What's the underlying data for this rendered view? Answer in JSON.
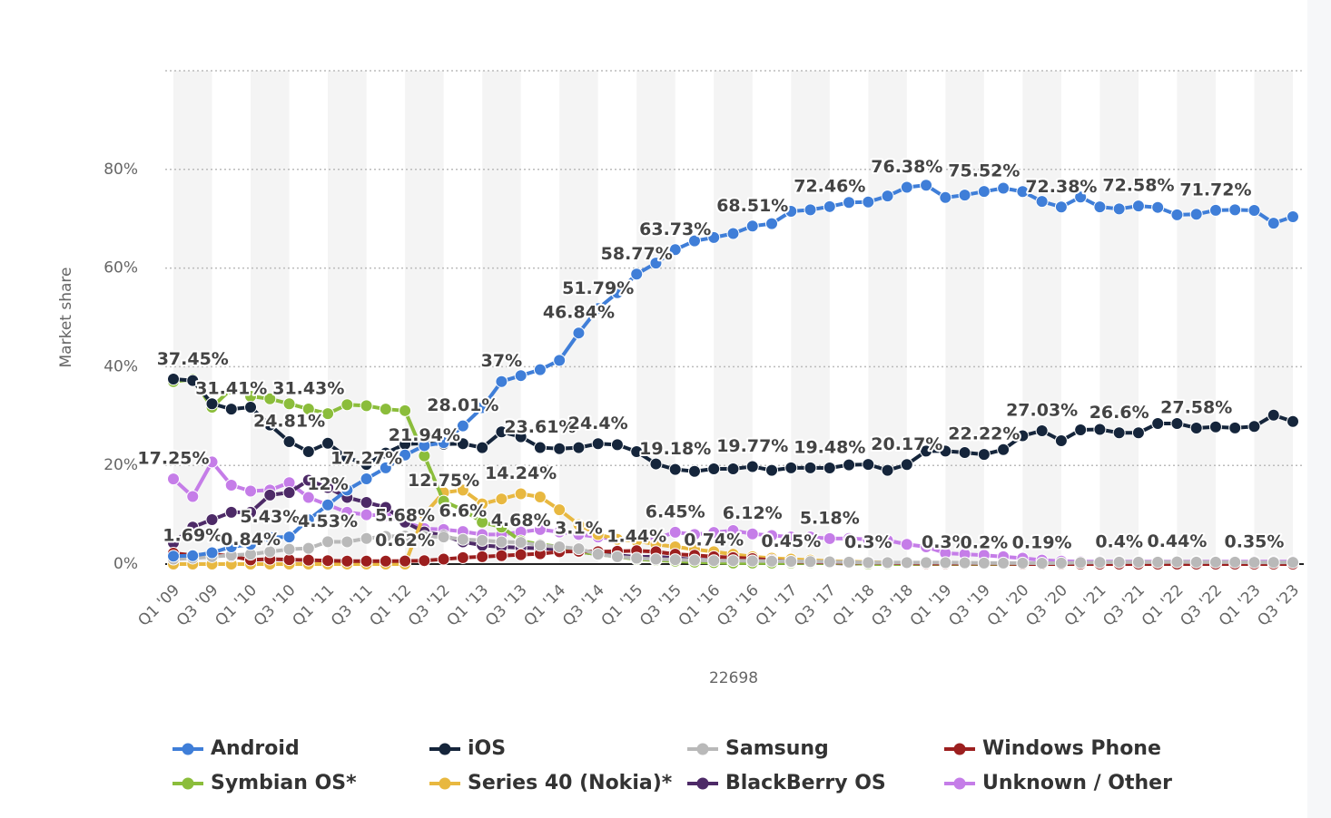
{
  "chart_data": {
    "type": "line",
    "y_label": "Market share",
    "x_label": "22698",
    "categories": [
      "Q1 '09",
      null,
      "Q3 '09",
      null,
      "Q1 '10",
      null,
      "Q3 '10",
      null,
      "Q1 '11",
      null,
      "Q3 '11",
      null,
      "Q1 '12",
      null,
      "Q3 '12",
      null,
      "Q1 '13",
      null,
      "Q3 '13",
      null,
      "Q1 '14",
      null,
      "Q3 '14",
      null,
      "Q1 '15",
      null,
      "Q3 '15",
      null,
      "Q1 '16",
      null,
      "Q3 '16",
      null,
      "Q1 '17",
      null,
      "Q3 '17",
      null,
      "Q1 '18",
      null,
      "Q3 '18",
      null,
      "Q1 '19",
      null,
      "Q3 '19",
      null,
      "Q1 '20",
      null,
      "Q3 '20",
      null,
      "Q1 '21",
      null,
      "Q3 '21",
      null,
      "Q1 '22",
      null,
      "Q3 '22",
      null,
      "Q1 '23",
      null,
      "Q3 '23"
    ],
    "ylim": [
      0,
      100
    ],
    "yticks": [
      {
        "value": 0,
        "label": "0%"
      },
      {
        "value": 20,
        "label": "20%"
      },
      {
        "value": 40,
        "label": "40%"
      },
      {
        "value": 60,
        "label": "60%"
      },
      {
        "value": 80,
        "label": "80%"
      }
    ],
    "grid": true,
    "legend": "bottom",
    "series": [
      {
        "name": "Android",
        "color": "#3f7ed8",
        "values": [
          1.6,
          1.69,
          2.3,
          3.5,
          4.0,
          5.43,
          5.5,
          9.0,
          12.0,
          15.0,
          17.27,
          19.5,
          22.1,
          24.0,
          24.6,
          28.01,
          31.7,
          37,
          38.2,
          39.4,
          41.3,
          46.84,
          51.79,
          55.0,
          58.77,
          61.0,
          63.73,
          65.5,
          66.2,
          67.0,
          68.51,
          69.0,
          71.5,
          71.8,
          72.46,
          73.3,
          73.4,
          74.6,
          76.38,
          76.8,
          74.3,
          74.8,
          75.52,
          76.2,
          75.5,
          73.5,
          72.38,
          74.4,
          72.4,
          72.0,
          72.58,
          72.3,
          70.8,
          70.9,
          71.72,
          71.8,
          71.7,
          69.1,
          70.4
        ],
        "value_labels": [
          null,
          "1.69%",
          null,
          null,
          null,
          "5.43%",
          null,
          null,
          null,
          null,
          "17.27%",
          null,
          null,
          null,
          null,
          "28.01%",
          null,
          "37%",
          null,
          null,
          null,
          "46.84%",
          "51.79%",
          null,
          "58.77%",
          null,
          "63.73%",
          null,
          null,
          null,
          "68.51%",
          null,
          null,
          null,
          "72.46%",
          null,
          null,
          null,
          "76.38%",
          null,
          null,
          null,
          "75.52%",
          null,
          null,
          null,
          "72.38%",
          null,
          null,
          null,
          "72.58%",
          null,
          null,
          null,
          "71.72%",
          null,
          null,
          null,
          null
        ]
      },
      {
        "name": "iOS",
        "color": "#15253b",
        "values": [
          37.5,
          37.2,
          32.5,
          31.41,
          31.8,
          28.2,
          24.81,
          22.8,
          24.5,
          21.6,
          20.2,
          22.5,
          24.3,
          24.5,
          24.3,
          24.4,
          23.6,
          26.8,
          25.8,
          23.61,
          23.4,
          23.6,
          24.4,
          24.2,
          22.8,
          20.3,
          19.18,
          18.8,
          19.3,
          19.3,
          19.77,
          19.0,
          19.5,
          19.5,
          19.48,
          20.1,
          20.2,
          19.0,
          20.17,
          22.9,
          22.9,
          22.6,
          22.22,
          23.2,
          26.0,
          27.03,
          25.0,
          27.2,
          27.3,
          26.6,
          26.6,
          28.5,
          28.5,
          27.58,
          27.8,
          27.6,
          27.9,
          30.2,
          28.9
        ],
        "value_labels": [
          null,
          null,
          null,
          "31.41%",
          null,
          null,
          "24.81%",
          null,
          null,
          null,
          null,
          null,
          null,
          null,
          null,
          null,
          null,
          null,
          null,
          "23.61%",
          null,
          null,
          "24.4%",
          null,
          null,
          null,
          "19.18%",
          null,
          null,
          null,
          "19.77%",
          null,
          null,
          null,
          "19.48%",
          null,
          null,
          null,
          "20.17%",
          null,
          null,
          null,
          "22.22%",
          null,
          null,
          "27.03%",
          null,
          null,
          null,
          "26.6%",
          null,
          null,
          null,
          "27.58%",
          null,
          null,
          null,
          null,
          null
        ]
      },
      {
        "name": "Samsung",
        "color": "#b9b9b9",
        "values": [
          1.0,
          1.2,
          1.5,
          1.8,
          2.0,
          2.5,
          3.0,
          3.2,
          4.53,
          4.5,
          5.2,
          5.6,
          5.68,
          5.6,
          5.5,
          5.0,
          4.8,
          4.5,
          4.4,
          3.8,
          3.5,
          3.1,
          2.0,
          1.5,
          1.2,
          1.0,
          0.9,
          0.8,
          0.7,
          0.7,
          0.65,
          0.6,
          0.55,
          0.5,
          0.45,
          0.4,
          0.3,
          0.3,
          0.3,
          0.3,
          0.3,
          0.25,
          0.2,
          0.2,
          0.2,
          0.19,
          0.2,
          0.3,
          0.35,
          0.4,
          0.4,
          0.4,
          0.44,
          0.4,
          0.4,
          0.4,
          0.35,
          0.35,
          0.35
        ],
        "value_labels": [
          null,
          null,
          null,
          null,
          null,
          null,
          null,
          null,
          "4.53%",
          null,
          null,
          null,
          "5.68%",
          null,
          null,
          null,
          null,
          null,
          null,
          null,
          null,
          "3.1%",
          null,
          null,
          null,
          null,
          null,
          null,
          null,
          null,
          null,
          null,
          null,
          null,
          null,
          null,
          "0.3%",
          null,
          null,
          null,
          "0.3%",
          null,
          "0.2%",
          null,
          null,
          "0.19%",
          null,
          null,
          null,
          "0.4%",
          null,
          null,
          "0.44%",
          null,
          null,
          null,
          "0.35%",
          null,
          null
        ]
      },
      {
        "name": "Windows Phone",
        "color": "#9c1f1f",
        "values": [
          2.2,
          1.8,
          2.0,
          1.6,
          0.84,
          1.0,
          0.9,
          0.8,
          0.7,
          0.6,
          0.6,
          0.6,
          0.62,
          0.7,
          1.0,
          1.3,
          1.5,
          1.7,
          1.9,
          2.1,
          2.5,
          2.6,
          2.5,
          2.6,
          2.7,
          2.5,
          2.0,
          1.8,
          1.5,
          1.3,
          1.1,
          0.8,
          0.45,
          0.4,
          0.35,
          0.3,
          0.25,
          0.2,
          0.15,
          0.1,
          0.1,
          0.1,
          0.1,
          0.1,
          0,
          0,
          0,
          0,
          0,
          0,
          0,
          0,
          0,
          0,
          0,
          0,
          0,
          0,
          0
        ],
        "value_labels": [
          null,
          null,
          null,
          null,
          "0.84%",
          null,
          null,
          null,
          null,
          null,
          null,
          null,
          "0.62%",
          null,
          null,
          null,
          null,
          null,
          null,
          null,
          null,
          null,
          null,
          null,
          null,
          null,
          null,
          null,
          null,
          null,
          null,
          null,
          "0.45%",
          null,
          null,
          null,
          null,
          null,
          null,
          null,
          null,
          null,
          null,
          null,
          null,
          null,
          null,
          null,
          null,
          null,
          null,
          null,
          null,
          null,
          null,
          null,
          null,
          null,
          null
        ]
      },
      {
        "name": "Symbian OS*",
        "color": "#8bbd3b",
        "values": [
          37.0,
          37.45,
          31.8,
          35.5,
          34.0,
          33.5,
          32.5,
          31.43,
          30.5,
          32.3,
          32.1,
          31.4,
          31.1,
          21.94,
          12.75,
          11.0,
          8.5,
          7.5,
          4.68,
          4.0,
          3.5,
          2.5,
          2.0,
          1.5,
          1.0,
          0.8,
          0.6,
          0.4,
          0.3,
          0.2,
          0.2,
          0.2,
          0.2,
          0.2,
          0.2,
          0.2,
          0,
          0,
          0,
          0,
          0,
          0,
          0,
          0,
          0,
          0,
          0,
          0,
          0,
          0,
          0,
          0,
          0,
          0,
          0,
          0,
          0,
          0,
          0
        ],
        "value_labels": [
          null,
          "37.45%",
          null,
          null,
          null,
          null,
          null,
          "31.43%",
          null,
          null,
          null,
          null,
          null,
          "21.94%",
          "12.75%",
          null,
          null,
          null,
          "4.68%",
          null,
          null,
          null,
          null,
          null,
          null,
          null,
          null,
          null,
          null,
          null,
          null,
          null,
          null,
          null,
          null,
          null,
          null,
          null,
          null,
          null,
          null,
          null,
          null,
          null,
          null,
          null,
          null,
          null,
          null,
          null,
          null,
          null,
          null,
          null,
          null,
          null,
          null,
          null,
          null
        ]
      },
      {
        "name": "Series 40 (Nokia)*",
        "color": "#e8b840",
        "values": [
          0,
          0,
          0,
          0,
          0,
          0,
          0,
          0,
          0,
          0,
          0,
          0,
          0,
          10.1,
          14.5,
          15.0,
          12.2,
          13.2,
          14.24,
          13.6,
          11.0,
          8.0,
          6.0,
          5.0,
          4.7,
          4.0,
          3.5,
          3.0,
          2.5,
          2.0,
          1.5,
          1.2,
          1.0,
          0.8,
          0.6,
          0.5,
          0.4,
          0.3,
          0.2,
          0.1,
          0.1,
          0.1,
          0,
          0,
          0,
          0,
          0,
          0,
          0,
          0,
          0,
          0,
          0,
          0,
          0,
          0,
          0,
          0,
          0
        ],
        "value_labels": [
          null,
          null,
          null,
          null,
          null,
          null,
          null,
          null,
          null,
          null,
          null,
          null,
          null,
          null,
          null,
          null,
          null,
          null,
          "14.24%",
          null,
          null,
          null,
          null,
          null,
          null,
          null,
          null,
          null,
          null,
          null,
          null,
          null,
          null,
          null,
          null,
          null,
          null,
          null,
          null,
          null,
          null,
          null,
          null,
          null,
          null,
          null,
          null,
          null,
          null,
          null,
          null,
          null,
          null,
          null,
          null,
          null,
          null,
          null,
          null
        ]
      },
      {
        "name": "BlackBerry OS",
        "color": "#4d2a67",
        "values": [
          4.3,
          7.5,
          9.0,
          10.5,
          10.5,
          14.0,
          14.5,
          17.0,
          15.5,
          13.5,
          12.5,
          11.5,
          8.5,
          6.5,
          5.8,
          4.5,
          3.8,
          3.5,
          3.3,
          3.2,
          3.0,
          2.5,
          2.0,
          1.8,
          1.44,
          1.5,
          1.2,
          0.9,
          0.74,
          0.6,
          0.5,
          0.4,
          0.3,
          0.2,
          0.2,
          0.1,
          0.1,
          0,
          0,
          0,
          0,
          0,
          0,
          0,
          0,
          0,
          0,
          0,
          0,
          0,
          0,
          0,
          0,
          0,
          0,
          0,
          0,
          0,
          0
        ],
        "value_labels": [
          null,
          null,
          null,
          null,
          null,
          null,
          null,
          null,
          null,
          null,
          null,
          null,
          null,
          null,
          null,
          null,
          null,
          null,
          null,
          null,
          null,
          null,
          null,
          null,
          "1.44%",
          null,
          null,
          null,
          "0.74%",
          null,
          null,
          null,
          null,
          null,
          null,
          null,
          null,
          null,
          null,
          null,
          null,
          null,
          null,
          null,
          null,
          null,
          null,
          null,
          null,
          null,
          null,
          null,
          null,
          null,
          null,
          null,
          null,
          null,
          null
        ]
      },
      {
        "name": "Unknown / Other",
        "color": "#c57de8",
        "values": [
          17.25,
          13.7,
          20.7,
          16.0,
          14.8,
          15.0,
          16.5,
          13.5,
          12,
          10.5,
          10.0,
          9.8,
          8.5,
          7.2,
          7.0,
          6.6,
          6.0,
          6.0,
          6.5,
          7.0,
          6.5,
          6.0,
          5.5,
          5.0,
          4.8,
          5.2,
          6.45,
          6.0,
          6.4,
          6.8,
          6.12,
          5.8,
          5.5,
          5.5,
          5.18,
          5.2,
          5.0,
          4.8,
          4.0,
          3.5,
          2.2,
          2.0,
          1.8,
          1.5,
          1.2,
          0.8,
          0.6,
          0.5,
          0.5,
          0.5,
          0.5,
          0.5,
          0.5,
          0.5,
          0.5,
          0.5,
          0.5,
          0.5,
          0.5
        ],
        "value_labels": [
          "17.25%",
          null,
          null,
          null,
          null,
          null,
          null,
          null,
          "12%",
          null,
          null,
          null,
          null,
          null,
          null,
          "6.6%",
          null,
          null,
          null,
          null,
          null,
          null,
          null,
          null,
          null,
          null,
          "6.45%",
          null,
          null,
          null,
          "6.12%",
          null,
          null,
          null,
          "5.18%",
          null,
          null,
          null,
          null,
          null,
          null,
          null,
          null,
          null,
          null,
          null,
          null,
          null,
          null,
          null,
          null,
          null,
          null,
          null,
          null,
          null,
          null,
          null,
          null
        ]
      }
    ]
  }
}
